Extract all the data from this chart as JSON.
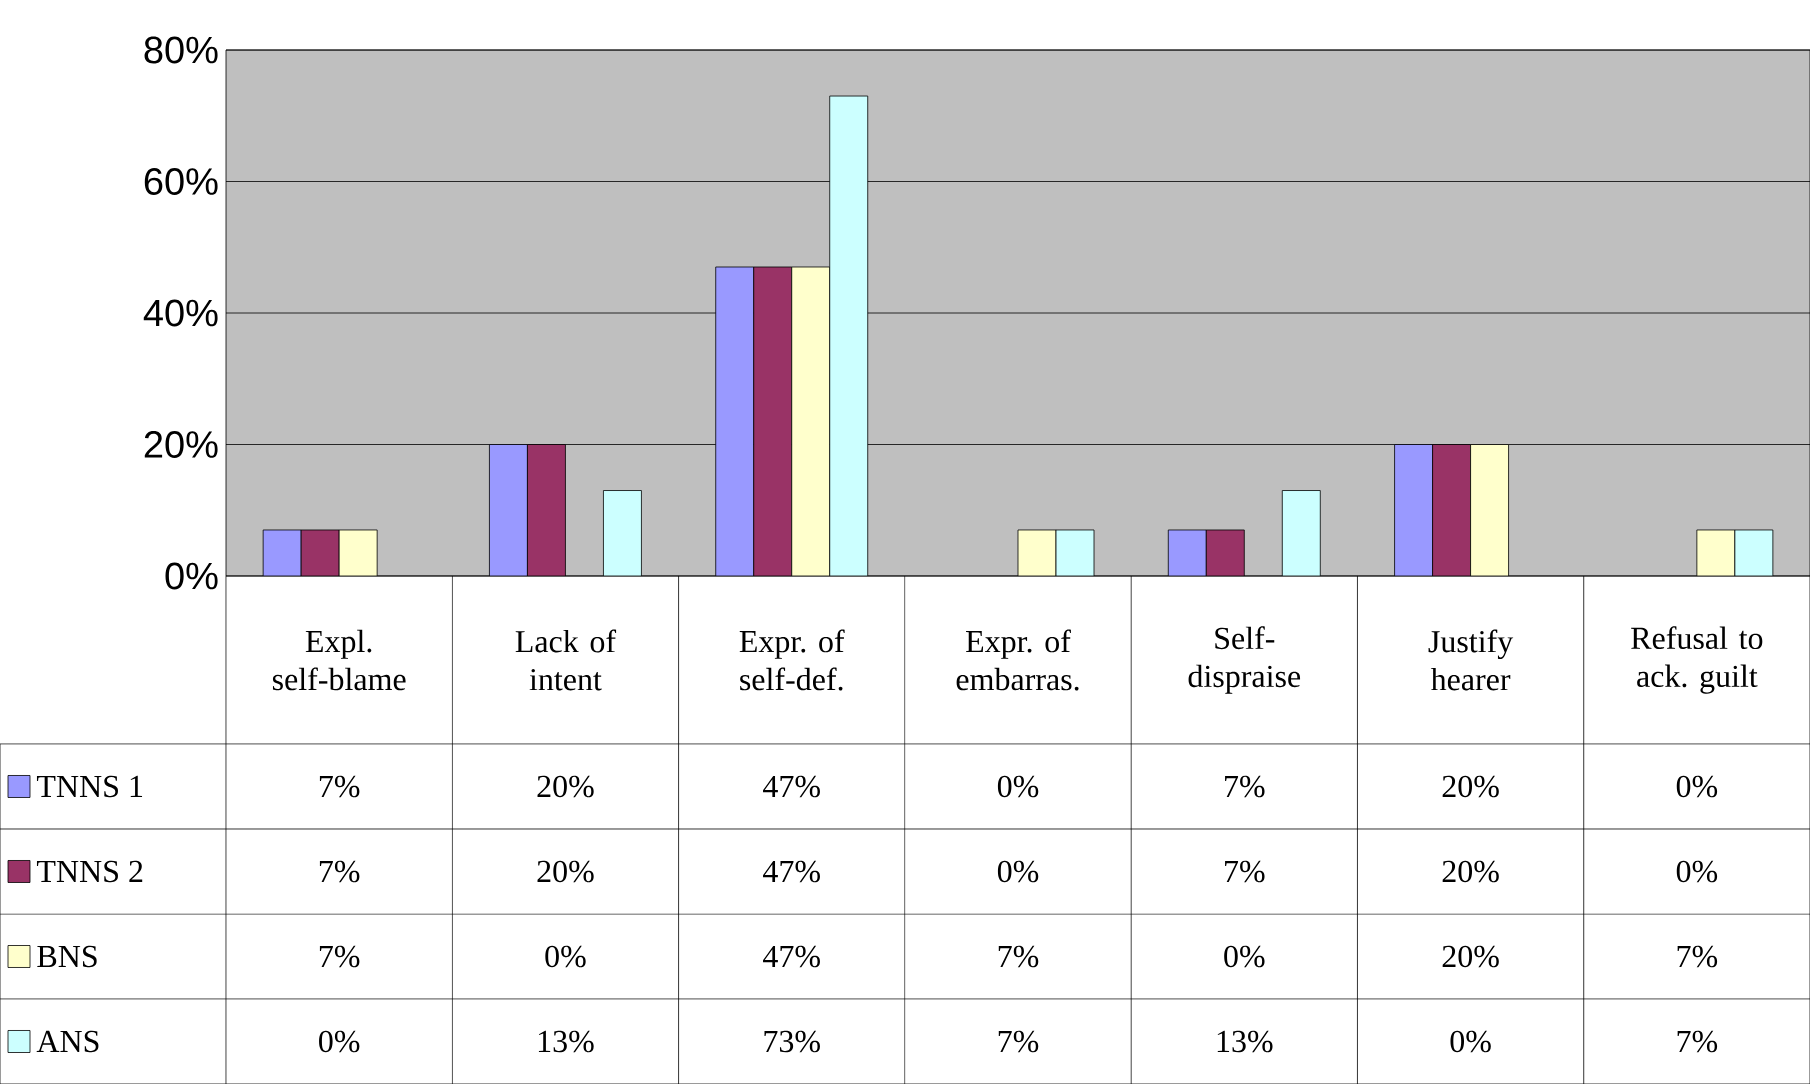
{
  "chart_data": {
    "type": "bar",
    "categories": [
      "Expl. self-blame",
      "Lack of intent",
      "Expr. of self-def.",
      "Expr. of embarras.",
      "Self-dispraise",
      "Justify hearer",
      "Refusal to ack. guilt"
    ],
    "series": [
      {
        "name": "TNNS 1",
        "color": "#9999ff",
        "values": [
          7,
          20,
          47,
          0,
          7,
          20,
          0
        ],
        "value_labels": [
          "7%",
          "20%",
          "47%",
          "0%",
          "7%",
          "20%",
          "0%"
        ]
      },
      {
        "name": "TNNS 2",
        "color": "#993366",
        "values": [
          7,
          20,
          47,
          0,
          7,
          20,
          0
        ],
        "value_labels": [
          "7%",
          "20%",
          "47%",
          "0%",
          "7%",
          "20%",
          "0%"
        ]
      },
      {
        "name": "BNS",
        "color": "#ffffcc",
        "values": [
          7,
          0,
          47,
          7,
          0,
          20,
          7
        ],
        "value_labels": [
          "7%",
          "0%",
          "47%",
          "7%",
          "0%",
          "20%",
          "7%"
        ]
      },
      {
        "name": "ANS",
        "color": "#ccffff",
        "values": [
          0,
          13,
          73,
          7,
          13,
          0,
          7
        ],
        "value_labels": [
          "0%",
          "13%",
          "73%",
          "7%",
          "13%",
          "0%",
          "7%"
        ]
      }
    ],
    "ylim": [
      0,
      80
    ],
    "yticks": [
      {
        "value": 0,
        "label": "0%"
      },
      {
        "value": 20,
        "label": "20%"
      },
      {
        "value": 40,
        "label": "40%"
      },
      {
        "value": 60,
        "label": "60%"
      },
      {
        "value": 80,
        "label": "80%"
      }
    ],
    "grid": "y",
    "legend": "left"
  }
}
